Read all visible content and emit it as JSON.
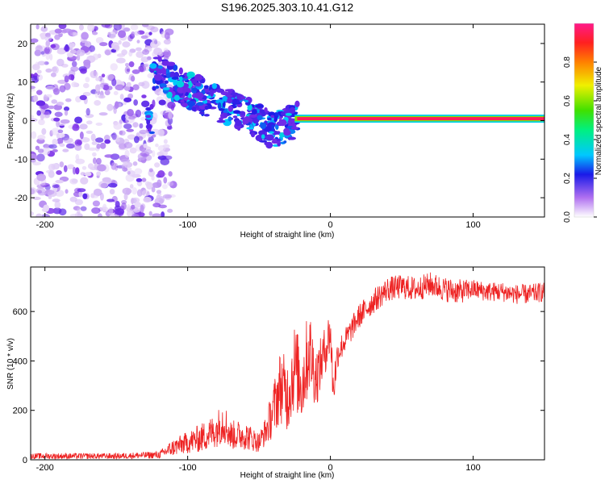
{
  "figure_title": "S196.2025.303.10.41.G12",
  "colors": {
    "snr_line": "#ee2222",
    "colormap": [
      "#e8d8f8",
      "#7a2ce8",
      "#1a1ae8",
      "#00c8ff",
      "#00f080",
      "#40e000",
      "#f0f000",
      "#ff8000",
      "#ff2020",
      "#ff1a8a"
    ]
  },
  "chart_data": [
    {
      "type": "heatmap",
      "name": "spectrogram",
      "xlabel": "Height of straight line (km)",
      "ylabel": "Frequency (Hz)",
      "xlim": [
        -210,
        150
      ],
      "ylim": [
        -25,
        25
      ],
      "xticks": [
        -200,
        -100,
        0,
        100
      ],
      "xtick_labels": [
        "-200",
        "-100",
        "0",
        "100"
      ],
      "yticks": [
        20,
        10,
        0,
        -10,
        -20
      ],
      "ytick_labels": [
        "20",
        "10",
        "0",
        "-10",
        "-20"
      ],
      "colorbar": {
        "label": "Normalized spectral amplitude",
        "range": [
          0.0,
          1.0
        ],
        "ticks": [
          0.0,
          0.2,
          0.4,
          0.6,
          0.8
        ],
        "tick_labels": [
          "0.0",
          "0.2",
          "0.4",
          "0.6",
          "0.8"
        ]
      },
      "features": {
        "noise_region_x": [
          -210,
          -120
        ],
        "descending_trend": [
          [
            -125,
            13
          ],
          [
            -100,
            8
          ],
          [
            -75,
            4
          ],
          [
            -55,
            1
          ],
          [
            -40,
            -3
          ],
          [
            -25,
            0
          ]
        ],
        "carrier_line": {
          "x": [
            -25,
            150
          ],
          "frequency": 0.5,
          "amplitude": 0.95
        }
      }
    },
    {
      "type": "line",
      "name": "snr",
      "xlabel": "Height of straight line (km)",
      "ylabel": "SNR (10 * v/v)",
      "xlim": [
        -210,
        150
      ],
      "ylim": [
        0,
        780
      ],
      "xticks": [
        -200,
        -100,
        0,
        100
      ],
      "xtick_labels": [
        "-200",
        "-100",
        "0",
        "100"
      ],
      "yticks": [
        0,
        200,
        400,
        600
      ],
      "ytick_labels": [
        "0",
        "200",
        "400",
        "600"
      ],
      "series": [
        {
          "name": "SNR",
          "x": [
            -210,
            -180,
            -150,
            -120,
            -110,
            -100,
            -90,
            -80,
            -75,
            -70,
            -60,
            -50,
            -45,
            -40,
            -35,
            -30,
            -25,
            -20,
            -15,
            -10,
            -5,
            0,
            2,
            5,
            10,
            20,
            30,
            40,
            50,
            60,
            70,
            80,
            90,
            100,
            110,
            120,
            130,
            140,
            150
          ],
          "values": [
            15,
            15,
            15,
            20,
            50,
            70,
            90,
            120,
            160,
            100,
            100,
            70,
            120,
            200,
            300,
            260,
            380,
            300,
            450,
            330,
            420,
            520,
            280,
            430,
            480,
            580,
            640,
            690,
            700,
            690,
            710,
            690,
            680,
            690,
            680,
            680,
            670,
            670,
            680
          ],
          "spread": [
            12,
            12,
            12,
            15,
            35,
            45,
            60,
            70,
            90,
            60,
            60,
            40,
            60,
            110,
            150,
            150,
            180,
            160,
            180,
            120,
            100,
            100,
            90,
            60,
            50,
            50,
            50,
            50,
            50,
            50,
            50,
            50,
            50,
            40,
            40,
            40,
            40,
            40,
            40
          ]
        }
      ]
    }
  ]
}
